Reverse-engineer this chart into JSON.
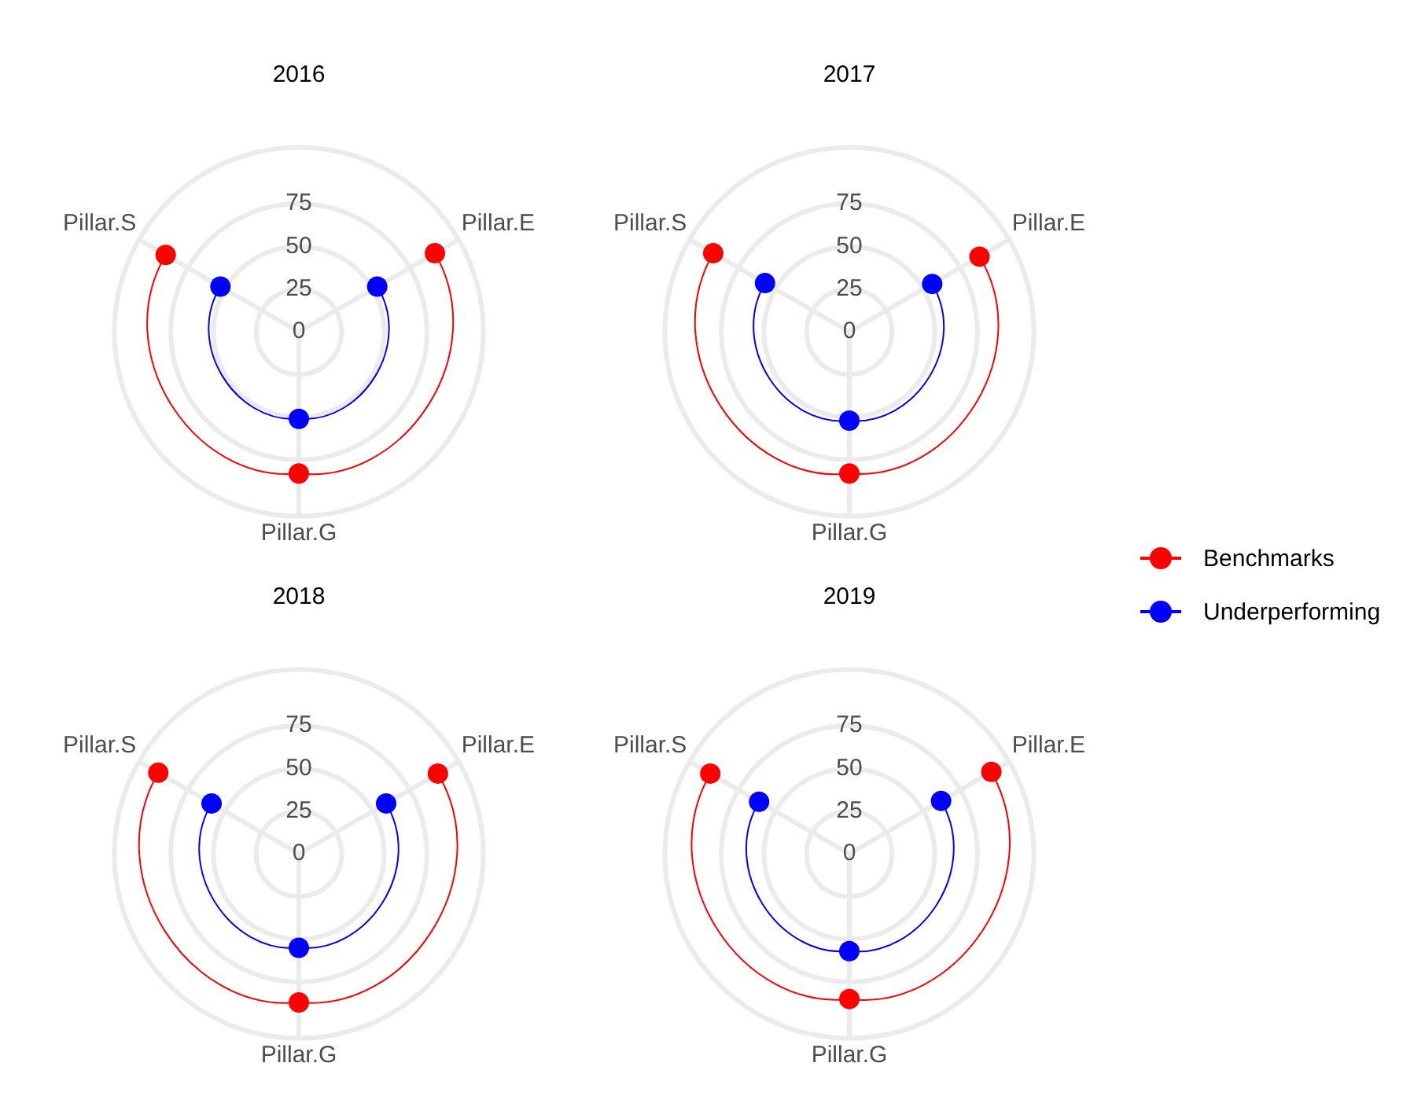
{
  "chart_data": [
    {
      "type": "radar",
      "title": "2016",
      "categories": [
        "Pillar.E",
        "Pillar.G",
        "Pillar.S"
      ],
      "series": [
        {
          "name": "Benchmarks",
          "color": "#ff0000",
          "values": [
            92,
            83,
            90
          ]
        },
        {
          "name": "Underperforming",
          "color": "#0000ff",
          "values": [
            53,
            51,
            53
          ]
        }
      ],
      "ylim": [
        0,
        108
      ],
      "yticks": [
        0,
        25,
        50,
        75
      ],
      "grid": true,
      "legend": "right",
      "marker": "circle"
    },
    {
      "type": "radar",
      "title": "2017",
      "categories": [
        "Pillar.E",
        "Pillar.G",
        "Pillar.S"
      ],
      "series": [
        {
          "name": "Benchmarks",
          "color": "#ff0000",
          "values": [
            88,
            83,
            92
          ]
        },
        {
          "name": "Underperforming",
          "color": "#0000ff",
          "values": [
            56,
            52,
            57
          ]
        }
      ],
      "ylim": [
        0,
        108
      ],
      "yticks": [
        0,
        25,
        50,
        75
      ],
      "grid": true,
      "legend": "right",
      "marker": "circle"
    },
    {
      "type": "radar",
      "title": "2018",
      "categories": [
        "Pillar.E",
        "Pillar.G",
        "Pillar.S"
      ],
      "series": [
        {
          "name": "Benchmarks",
          "color": "#ff0000",
          "values": [
            94,
            87,
            95
          ]
        },
        {
          "name": "Underperforming",
          "color": "#0000ff",
          "values": [
            59,
            55,
            59
          ]
        }
      ],
      "ylim": [
        0,
        108
      ],
      "yticks": [
        0,
        25,
        50,
        75
      ],
      "grid": true,
      "legend": "right",
      "marker": "circle"
    },
    {
      "type": "radar",
      "title": "2019",
      "categories": [
        "Pillar.E",
        "Pillar.G",
        "Pillar.S"
      ],
      "series": [
        {
          "name": "Benchmarks",
          "color": "#ff0000",
          "values": [
            96,
            85,
            94
          ]
        },
        {
          "name": "Underperforming",
          "color": "#0000ff",
          "values": [
            62,
            57,
            61
          ]
        }
      ],
      "ylim": [
        0,
        108
      ],
      "yticks": [
        0,
        25,
        50,
        75
      ],
      "grid": true,
      "legend": "right",
      "marker": "circle"
    }
  ]
}
